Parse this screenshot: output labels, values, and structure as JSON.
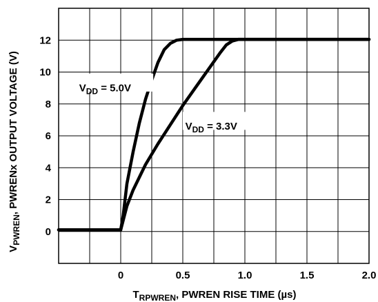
{
  "chart_data": {
    "type": "line",
    "xlabel": {
      "pre": "T",
      "sub": "RPWREN",
      "post": ", PWREN RISE TIME (µs)"
    },
    "ylabel": {
      "pre": "V",
      "sub": "PWREN",
      "post": ", PWRENx OUTPUT VOLTAGE (V)"
    },
    "xlim": [
      -0.5,
      2.0
    ],
    "ylim": [
      -2,
      14
    ],
    "x_ticks": [
      0,
      0.5,
      1.0,
      1.5,
      2.0
    ],
    "x_tick_labels": [
      "0",
      "0.5",
      "1.0",
      "1.5",
      "2.0"
    ],
    "y_ticks": [
      0,
      2,
      4,
      6,
      8,
      10,
      12
    ],
    "y_tick_labels": [
      "0",
      "2",
      "4",
      "6",
      "8",
      "10",
      "12"
    ],
    "grid": true,
    "series": [
      {
        "name": "VDD = 5.0V",
        "label": {
          "pre": "V",
          "sub": "DD",
          "post": " = 5.0V"
        },
        "x": [
          -0.5,
          0.0,
          0.02,
          0.05,
          0.1,
          0.15,
          0.2,
          0.25,
          0.3,
          0.35,
          0.4,
          0.45,
          0.5,
          0.55,
          0.6,
          0.7,
          2.0
        ],
        "y": [
          0.1,
          0.1,
          1.0,
          3.0,
          5.0,
          6.8,
          8.3,
          9.5,
          10.6,
          11.4,
          11.8,
          12.0,
          12.05,
          12.05,
          12.05,
          12.05,
          12.05
        ]
      },
      {
        "name": "VDD = 3.3V",
        "label": {
          "pre": "V",
          "sub": "DD",
          "post": " = 3.3V"
        },
        "x": [
          -0.5,
          0.0,
          0.02,
          0.05,
          0.1,
          0.2,
          0.3,
          0.4,
          0.5,
          0.6,
          0.7,
          0.8,
          0.85,
          0.9,
          0.95,
          1.0,
          2.0
        ],
        "y": [
          0.1,
          0.1,
          0.7,
          1.6,
          2.6,
          4.2,
          5.5,
          6.7,
          7.9,
          9.0,
          10.1,
          11.2,
          11.7,
          11.95,
          12.05,
          12.05,
          12.05
        ]
      }
    ]
  }
}
